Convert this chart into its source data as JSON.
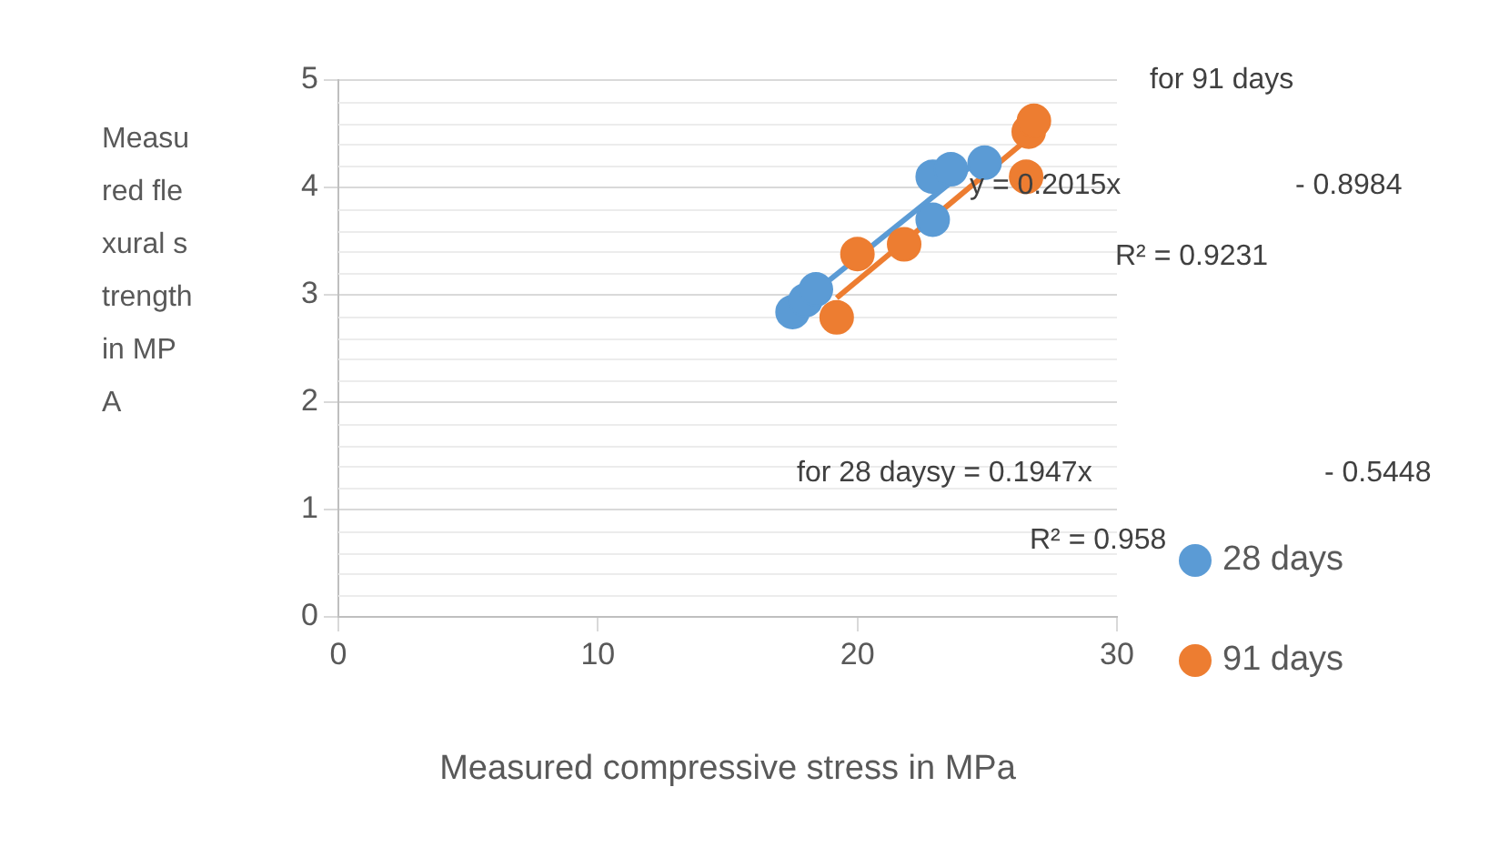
{
  "chart_data": {
    "type": "scatter",
    "xlabel": "Measured compressive stress in MPa",
    "ylabel": "Measured flexural strength in MPA",
    "xlim": [
      0,
      30
    ],
    "xticks": [
      0,
      10,
      20,
      30
    ],
    "ylim": [
      0,
      5
    ],
    "yticks": [
      0,
      1,
      2,
      3,
      4,
      5
    ],
    "grid": "y",
    "legend": "right",
    "marker": "circle",
    "series": [
      {
        "name": "28 days",
        "color": "#5b9bd5",
        "x": [
          17.5,
          18.0,
          18.4,
          22.9,
          23.6,
          24.9,
          22.9
        ],
        "values": [
          2.84,
          2.95,
          3.05,
          4.1,
          4.17,
          4.23,
          3.7
        ]
      },
      {
        "name": "91 days",
        "color": "#ed7d31",
        "x": [
          19.2,
          20.0,
          21.8,
          26.5,
          26.6,
          26.8
        ],
        "values": [
          2.79,
          3.38,
          3.47,
          4.1,
          4.52,
          4.62
        ]
      },
      {
        "type": "line",
        "marker": "none",
        "color": "#5b9bd5",
        "x": [
          17.5,
          24.9
        ],
        "values": [
          2.86,
          4.3
        ]
      },
      {
        "type": "line",
        "marker": "none",
        "color": "#ed7d31",
        "x": [
          19.2,
          26.8
        ],
        "values": [
          2.97,
          4.5
        ]
      }
    ],
    "annotations": [
      "for 91 days",
      "y = 0.2015x",
      "- 0.8984",
      "R² = 0.9231",
      "for 28 daysy = 0.1947x",
      "- 0.5448",
      "R² = 0.958"
    ]
  }
}
